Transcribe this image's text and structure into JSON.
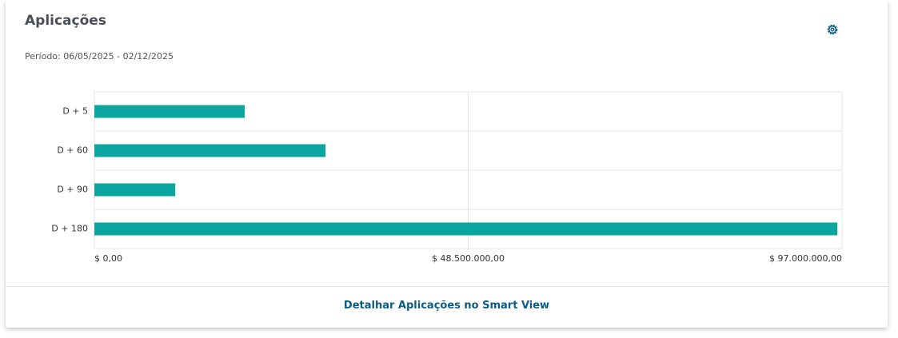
{
  "chart_data": {
    "type": "bar",
    "orientation": "horizontal",
    "title": "Aplicações",
    "subtitle": "Período: 06/05/2025 - 02/12/2025",
    "categories": [
      "D + 5",
      "D + 60",
      "D + 90",
      "D + 180"
    ],
    "values": [
      19500000,
      30000000,
      10500000,
      96400000
    ],
    "color": "#0aa59f",
    "xlim": [
      0,
      97000000
    ],
    "xticks": [
      {
        "value": 0,
        "label": "$ 0,00"
      },
      {
        "value": 48500000,
        "label": "$ 48.500.000,00"
      },
      {
        "value": 97000000,
        "label": "$ 97.000.000,00"
      }
    ],
    "grid": true
  },
  "footer_link": "Detalhar Aplicações no Smart View"
}
